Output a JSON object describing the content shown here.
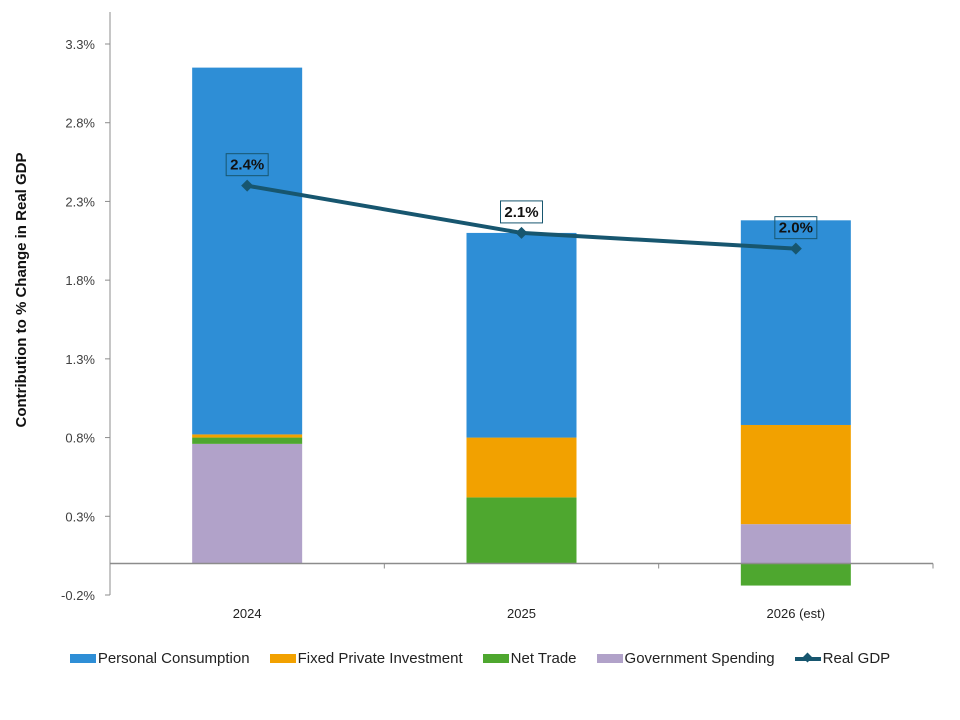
{
  "chart_data": {
    "type": "bar",
    "stacked": true,
    "title": "",
    "xlabel": "",
    "ylabel": "Contribution to % Change in Real GDP",
    "ylim": [
      -0.2,
      3.3
    ],
    "yticks": [
      -0.2,
      0.3,
      0.8,
      1.3,
      1.8,
      2.3,
      2.8,
      3.3
    ],
    "ytick_labels": [
      "-0.2%",
      "0.3%",
      "0.8%",
      "1.3%",
      "1.8%",
      "2.3%",
      "2.8%",
      "3.3%"
    ],
    "grid": false,
    "categories": [
      "2024",
      "2025",
      "2026 (est)"
    ],
    "series": [
      {
        "name": "Government Spending",
        "type": "bar",
        "color": "#b1a2c9",
        "values": [
          0.76,
          0.0,
          0.25
        ]
      },
      {
        "name": "Net Trade",
        "type": "bar",
        "color": "#4ea72f",
        "values": [
          0.04,
          0.42,
          -0.14
        ]
      },
      {
        "name": "Fixed Private Investment",
        "type": "bar",
        "color": "#f2a100",
        "values": [
          0.02,
          0.38,
          0.63
        ]
      },
      {
        "name": "Personal Consumption",
        "type": "bar",
        "color": "#2e8ed6",
        "values": [
          2.33,
          1.3,
          1.3
        ]
      },
      {
        "name": "Real GDP",
        "type": "line",
        "color": "#17566f",
        "values": [
          2.4,
          2.1,
          2.0
        ],
        "data_labels": [
          "2.4%",
          "2.1%",
          "2.0%"
        ]
      }
    ],
    "legend": {
      "placement": "bottom",
      "entries": [
        "Personal Consumption",
        "Fixed Private Investment",
        "Net Trade",
        "Government Spending",
        "Real GDP"
      ]
    }
  },
  "legend_items": [
    {
      "label": "Personal Consumption",
      "color": "#2e8ed6",
      "kind": "box"
    },
    {
      "label": "Fixed Private Investment",
      "color": "#f2a100",
      "kind": "box"
    },
    {
      "label": "Net Trade",
      "color": "#4ea72f",
      "kind": "box"
    },
    {
      "label": "Government Spending",
      "color": "#b1a2c9",
      "kind": "box"
    },
    {
      "label": "Real GDP",
      "color": "#17566f",
      "kind": "line"
    }
  ]
}
